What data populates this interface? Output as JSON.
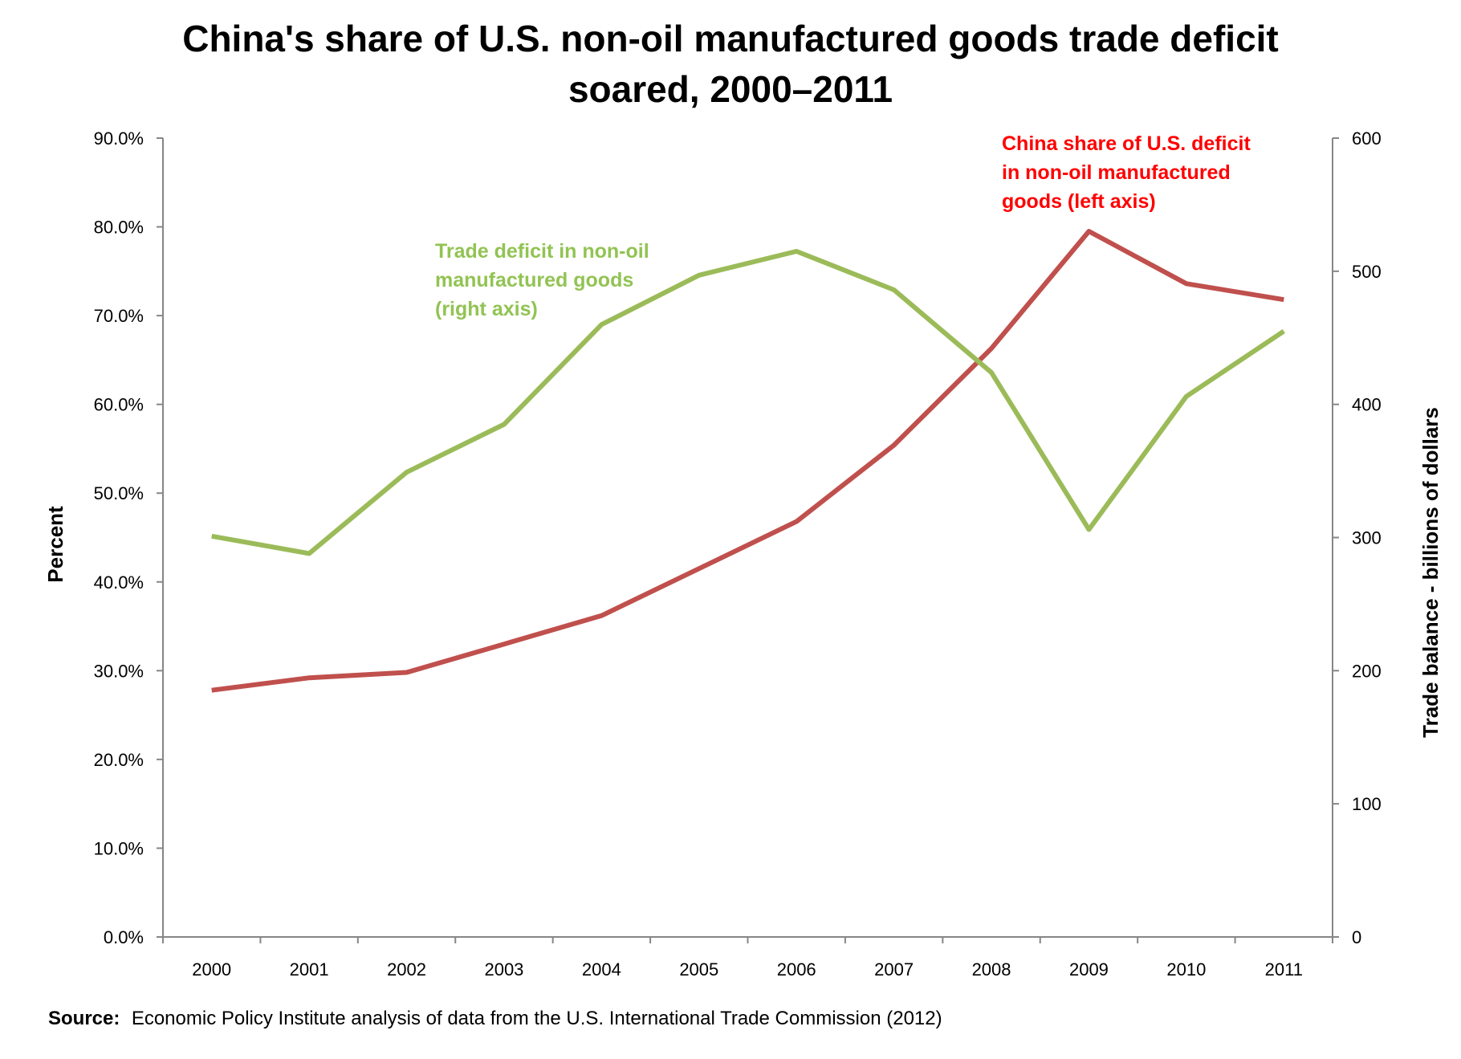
{
  "chart_data": {
    "type": "line",
    "title_lines": [
      "China's share of U.S. non-oil manufactured goods trade deficit",
      "soared, 2000–2011"
    ],
    "x": [
      "2000",
      "2001",
      "2002",
      "2003",
      "2004",
      "2005",
      "2006",
      "2007",
      "2008",
      "2009",
      "2010",
      "2011"
    ],
    "y_left": {
      "label": "Percent",
      "lim": [
        0,
        90
      ],
      "ticks": [
        "0.0%",
        "10.0%",
        "20.0%",
        "30.0%",
        "40.0%",
        "50.0%",
        "60.0%",
        "70.0%",
        "80.0%",
        "90.0%"
      ],
      "tick_values": [
        0,
        10,
        20,
        30,
        40,
        50,
        60,
        70,
        80,
        90
      ]
    },
    "y_right": {
      "label": "Trade balance - billions of dollars",
      "lim": [
        0,
        600
      ],
      "ticks": [
        "0",
        "100",
        "200",
        "300",
        "400",
        "500",
        "600"
      ],
      "tick_values": [
        0,
        100,
        200,
        300,
        400,
        500,
        600
      ]
    },
    "series": [
      {
        "key": "china_share",
        "axis": "left",
        "color": "#C0504D",
        "values": [
          27.8,
          29.2,
          29.8,
          33.0,
          36.2,
          41.5,
          46.8,
          55.4,
          66.3,
          79.5,
          73.6,
          71.8
        ],
        "annotation_lines": [
          "China share of U.S. deficit",
          "in non-oil manufactured",
          "goods (left axis)"
        ],
        "annotation_color": "#FF0000"
      },
      {
        "key": "trade_deficit",
        "axis": "right",
        "color": "#9BBB59",
        "values": [
          301,
          288,
          349,
          385,
          460,
          497,
          515,
          486,
          424,
          306,
          406,
          455
        ],
        "annotation_lines": [
          "Trade deficit in non-oil",
          "manufactured goods",
          "(right axis)"
        ],
        "annotation_color": "#92C353"
      }
    ],
    "grid": false,
    "legend": "none"
  },
  "source": {
    "label": "Source:",
    "text": "Economic Policy Institute analysis of  data from the U.S. International Trade Commission (2012)"
  }
}
